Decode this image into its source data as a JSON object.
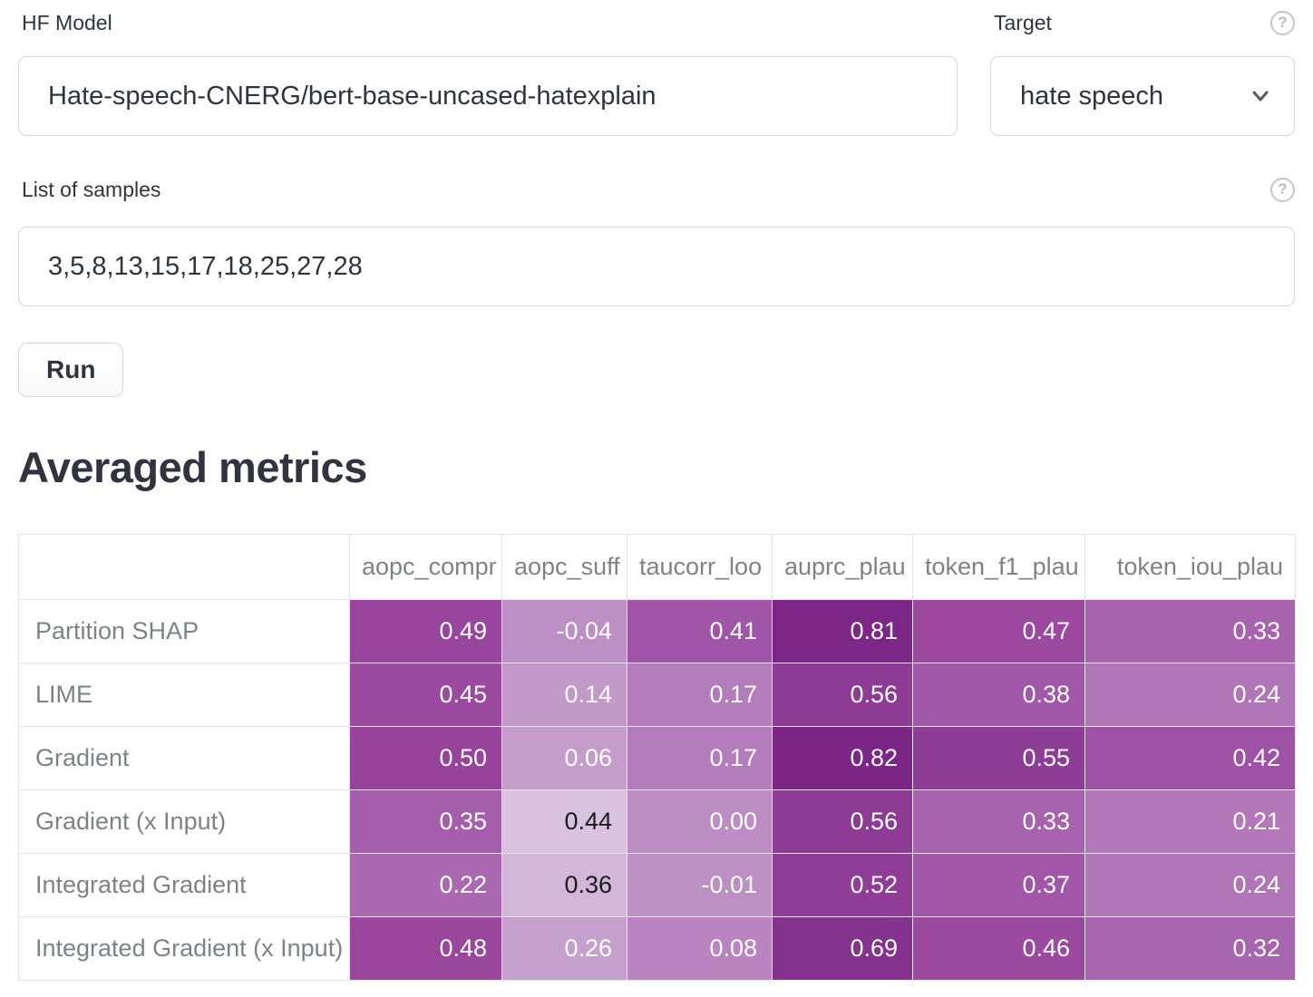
{
  "form": {
    "hf_model": {
      "label": "HF Model",
      "value": "Hate-speech-CNERG/bert-base-uncased-hatexplain"
    },
    "target": {
      "label": "Target",
      "value": "hate speech",
      "help_icon": "?"
    },
    "samples": {
      "label": "List of samples",
      "value": "3,5,8,13,15,17,18,25,27,28",
      "help_icon": "?"
    },
    "run_button": "Run"
  },
  "metrics": {
    "title": "Averaged metrics",
    "columns": [
      "aopc_compr",
      "aopc_suff",
      "taucorr_loo",
      "auprc_plau",
      "token_f1_plau",
      "token_iou_plau"
    ],
    "rows": [
      {
        "label": "Partition SHAP",
        "cells": [
          {
            "value": "0.49",
            "bg": "#9a459d",
            "fg": "#ffffff"
          },
          {
            "value": "-0.04",
            "bg": "#bd90c5",
            "fg": "#ffffff"
          },
          {
            "value": "0.41",
            "bg": "#a055a8",
            "fg": "#ffffff"
          },
          {
            "value": "0.81",
            "bg": "#7c2688",
            "fg": "#ffffff"
          },
          {
            "value": "0.47",
            "bg": "#9b489e",
            "fg": "#ffffff"
          },
          {
            "value": "0.33",
            "bg": "#a763ae",
            "fg": "#ffffff"
          }
        ]
      },
      {
        "label": "LIME",
        "cells": [
          {
            "value": "0.45",
            "bg": "#9c4aa0",
            "fg": "#ffffff"
          },
          {
            "value": "0.14",
            "bg": "#c299c9",
            "fg": "#ffffff"
          },
          {
            "value": "0.17",
            "bg": "#b37cba",
            "fg": "#ffffff"
          },
          {
            "value": "0.56",
            "bg": "#8d3b95",
            "fg": "#ffffff"
          },
          {
            "value": "0.38",
            "bg": "#a158a8",
            "fg": "#ffffff"
          },
          {
            "value": "0.24",
            "bg": "#b176b8",
            "fg": "#ffffff"
          }
        ]
      },
      {
        "label": "Gradient",
        "cells": [
          {
            "value": "0.50",
            "bg": "#98439b",
            "fg": "#ffffff"
          },
          {
            "value": "0.06",
            "bg": "#c49dcb",
            "fg": "#ffffff"
          },
          {
            "value": "0.17",
            "bg": "#b37cba",
            "fg": "#ffffff"
          },
          {
            "value": "0.82",
            "bg": "#7b2587",
            "fg": "#ffffff"
          },
          {
            "value": "0.55",
            "bg": "#8e3d96",
            "fg": "#ffffff"
          },
          {
            "value": "0.42",
            "bg": "#9f52a5",
            "fg": "#ffffff"
          }
        ]
      },
      {
        "label": "Gradient (x Input)",
        "cells": [
          {
            "value": "0.35",
            "bg": "#a55eac",
            "fg": "#ffffff"
          },
          {
            "value": "0.44",
            "bg": "#d9c2de",
            "fg": "#1c1c1c"
          },
          {
            "value": "0.00",
            "bg": "#bb8dc2",
            "fg": "#ffffff"
          },
          {
            "value": "0.56",
            "bg": "#8d3b95",
            "fg": "#ffffff"
          },
          {
            "value": "0.33",
            "bg": "#a763ae",
            "fg": "#ffffff"
          },
          {
            "value": "0.21",
            "bg": "#b378ba",
            "fg": "#ffffff"
          }
        ]
      },
      {
        "label": "Integrated Gradient",
        "cells": [
          {
            "value": "0.22",
            "bg": "#a968b0",
            "fg": "#ffffff"
          },
          {
            "value": "0.36",
            "bg": "#d2b7d8",
            "fg": "#1c1c1c"
          },
          {
            "value": "-0.01",
            "bg": "#bd90c4",
            "fg": "#ffffff"
          },
          {
            "value": "0.52",
            "bg": "#8f3d97",
            "fg": "#ffffff"
          },
          {
            "value": "0.37",
            "bg": "#a156a8",
            "fg": "#ffffff"
          },
          {
            "value": "0.24",
            "bg": "#b176b8",
            "fg": "#ffffff"
          }
        ]
      },
      {
        "label": "Integrated Gradient (x Input)",
        "cells": [
          {
            "value": "0.48",
            "bg": "#9a469d",
            "fg": "#ffffff"
          },
          {
            "value": "0.26",
            "bg": "#c6a0cd",
            "fg": "#ffffff"
          },
          {
            "value": "0.08",
            "bg": "#b984c0",
            "fg": "#ffffff"
          },
          {
            "value": "0.69",
            "bg": "#85318e",
            "fg": "#ffffff"
          },
          {
            "value": "0.46",
            "bg": "#9c4aa0",
            "fg": "#ffffff"
          },
          {
            "value": "0.32",
            "bg": "#a865af",
            "fg": "#ffffff"
          }
        ]
      }
    ]
  },
  "colors": {
    "accent_dark": "#7b2587",
    "accent_light": "#d9c2de",
    "border": "#d5d9e2",
    "muted_text": "rgba(49,51,63,0.62)"
  }
}
